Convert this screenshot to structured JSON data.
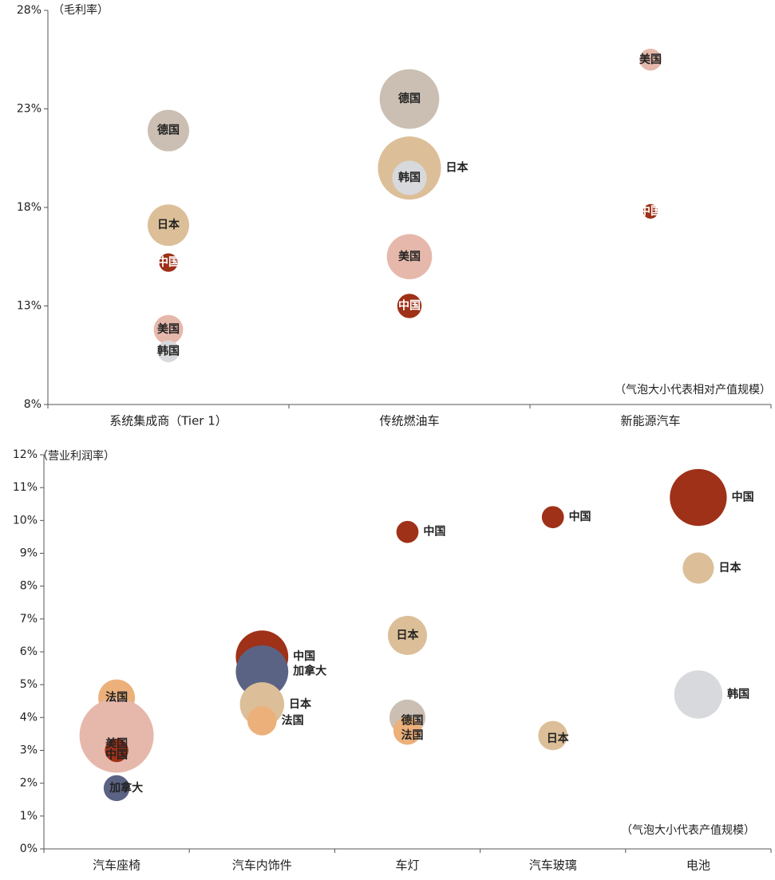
{
  "chart_data": [
    {
      "type": "bubble",
      "title": "",
      "ylabel": "（毛利率）",
      "note": "（气泡大小代表相对产值规模）",
      "ylim": [
        8,
        28
      ],
      "yticks": [
        8,
        13,
        18,
        23,
        28
      ],
      "ytick_labels": [
        "8%",
        "13%",
        "18%",
        "23%",
        "28%"
      ],
      "categories": [
        "系统集成商（Tier 1）",
        "传统燃油车",
        "新能源汽车"
      ],
      "colors": {
        "德国": "#cabfb2",
        "日本": "#dcbf98",
        "中国": "#9e3118",
        "美国": "#e6b8ab",
        "韩国": "#d8d9dc"
      },
      "points": [
        {
          "category": 0,
          "label": "德国",
          "y": 21.9,
          "size": 16
        },
        {
          "category": 0,
          "label": "日本",
          "y": 17.1,
          "size": 16
        },
        {
          "category": 0,
          "label": "中国",
          "y": 15.2,
          "size": 3.2
        },
        {
          "category": 0,
          "label": "美国",
          "y": 11.8,
          "size": 8
        },
        {
          "category": 0,
          "label": "韩国",
          "y": 10.7,
          "size": 4.5
        },
        {
          "category": 1,
          "label": "日本",
          "y": 20.0,
          "size": 37,
          "label_side": "right"
        },
        {
          "category": 1,
          "label": "德国",
          "y": 23.5,
          "size": 33
        },
        {
          "category": 1,
          "label": "韩国",
          "y": 19.5,
          "size": 11
        },
        {
          "category": 1,
          "label": "美国",
          "y": 15.5,
          "size": 19
        },
        {
          "category": 1,
          "label": "中国",
          "y": 13.0,
          "size": 5.5
        },
        {
          "category": 2,
          "label": "美国",
          "y": 25.5,
          "size": 4.5
        },
        {
          "category": 2,
          "label": "中国",
          "y": 17.8,
          "size": 2
        }
      ]
    },
    {
      "type": "bubble",
      "title": "",
      "ylabel": "（营业利润率）",
      "note": "（气泡大小代表产值规模）",
      "ylim": [
        0,
        12
      ],
      "yticks": [
        0,
        1,
        2,
        3,
        4,
        5,
        6,
        7,
        8,
        9,
        10,
        11,
        12
      ],
      "ytick_labels": [
        "0%",
        "1%",
        "2%",
        "3%",
        "4%",
        "5%",
        "6%",
        "7%",
        "8%",
        "9%",
        "10%",
        "11%",
        "12%"
      ],
      "categories": [
        "汽车座椅",
        "汽车内饰件",
        "车灯",
        "汽车玻璃",
        "电池"
      ],
      "colors": {
        "中国": "#9e3118",
        "日本": "#dcbf98",
        "法国": "#ecb07a",
        "美国": "#e6b8ab",
        "加拿大": "#5b6384",
        "德国": "#cabfb2",
        "韩国": "#d8d9dc"
      },
      "points": [
        {
          "category": 0,
          "label": "法国",
          "y": 4.6,
          "size": 2.2,
          "label_side": "center"
        },
        {
          "category": 0,
          "label": "美国",
          "y": 3.45,
          "size": 9,
          "label_side": "center",
          "label_dy": -0.25
        },
        {
          "category": 0,
          "label": "中国",
          "y": 3.0,
          "size": 0.9,
          "label_side": "center",
          "label_dy": -0.15
        },
        {
          "category": 0,
          "label": "加拿大",
          "y": 1.85,
          "size": 1.1,
          "label_side": "center",
          "label_dx": 12
        },
        {
          "category": 1,
          "label": "中国",
          "y": 5.85,
          "size": 4.5,
          "label_side": "right"
        },
        {
          "category": 1,
          "label": "加拿大",
          "y": 5.4,
          "size": 4.5,
          "label_side": "right"
        },
        {
          "category": 1,
          "label": "日本",
          "y": 4.4,
          "size": 3.2,
          "label_side": "right"
        },
        {
          "category": 1,
          "label": "法国",
          "y": 3.9,
          "size": 1.4,
          "label_side": "right"
        },
        {
          "category": 2,
          "label": "中国",
          "y": 9.65,
          "size": 0.8,
          "label_side": "right"
        },
        {
          "category": 2,
          "label": "日本",
          "y": 6.5,
          "size": 2.5,
          "label_side": "center"
        },
        {
          "category": 2,
          "label": "德国",
          "y": 4.0,
          "size": 2.1,
          "label_side": "center",
          "label_dx": 6,
          "label_dy": -0.1
        },
        {
          "category": 2,
          "label": "法国",
          "y": 3.6,
          "size": 1.3,
          "label_side": "center",
          "label_dx": 6,
          "label_dy": -0.15
        },
        {
          "category": 3,
          "label": "中国",
          "y": 10.1,
          "size": 0.8,
          "label_side": "right"
        },
        {
          "category": 3,
          "label": "日本",
          "y": 3.45,
          "size": 1.4,
          "label_side": "center",
          "label_dx": 6,
          "label_dy": -0.1
        },
        {
          "category": 4,
          "label": "中国",
          "y": 10.7,
          "size": 5.3,
          "label_side": "right"
        },
        {
          "category": 4,
          "label": "日本",
          "y": 8.55,
          "size": 1.6,
          "label_side": "right"
        },
        {
          "category": 4,
          "label": "韩国",
          "y": 4.7,
          "size": 3.8,
          "label_side": "right"
        }
      ]
    }
  ]
}
